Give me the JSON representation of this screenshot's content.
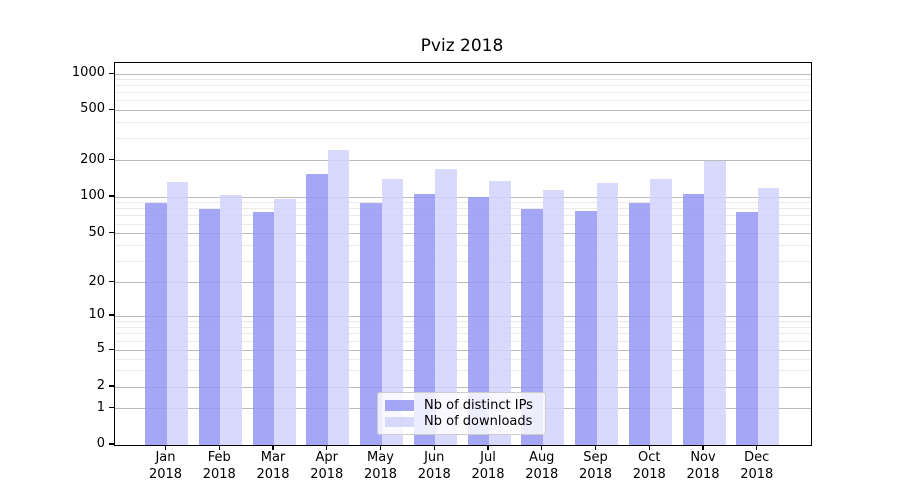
{
  "chart_data": {
    "type": "bar",
    "title": "Pviz 2018",
    "yscale": "symlog",
    "ylim": [
      0,
      1250
    ],
    "yticks": [
      0,
      1,
      2,
      5,
      10,
      20,
      50,
      100,
      200,
      500,
      1000
    ],
    "grid": true,
    "legend_position": "lower center",
    "categories": [
      "Jan",
      "Feb",
      "Mar",
      "Apr",
      "May",
      "Jun",
      "Jul",
      "Aug",
      "Sep",
      "Oct",
      "Nov",
      "Dec"
    ],
    "xtick_year": "2018",
    "series": [
      {
        "name": "Nb of distinct IPs",
        "color": "#9696f6",
        "values": [
          90,
          79,
          76,
          155,
          90,
          106,
          100,
          79,
          77,
          90,
          105,
          75
        ]
      },
      {
        "name": "Nb of downloads",
        "color": "#d2d2fa",
        "values": [
          133,
          103,
          97,
          242,
          140,
          170,
          135,
          115,
          130,
          141,
          200,
          119
        ]
      }
    ]
  }
}
